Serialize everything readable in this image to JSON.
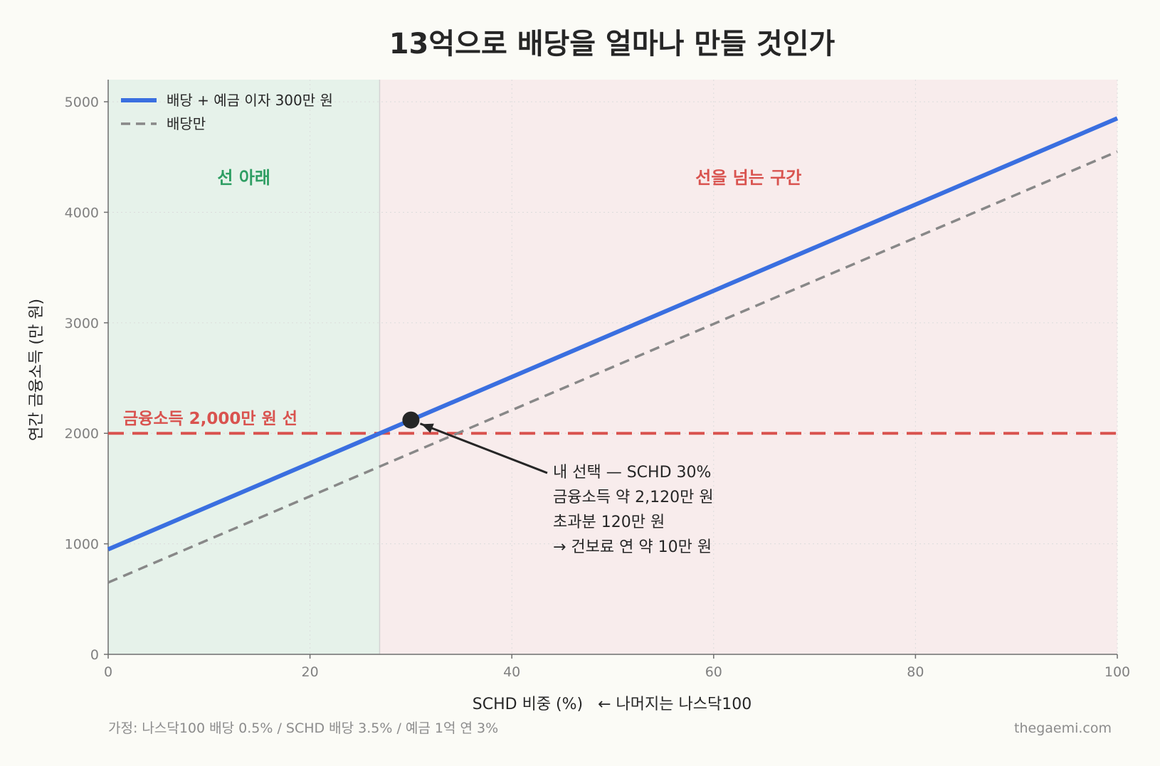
{
  "chart_data": {
    "type": "line",
    "title": "13억으로 배당을 얼마나 만들 것인가",
    "xlabel": "SCHD 비중 (%)   ← 나머지는 나스닥100",
    "ylabel": "연간 금융소득 (만 원)",
    "xlim": [
      0,
      100
    ],
    "ylim": [
      0,
      5200
    ],
    "xticks": [
      0,
      20,
      40,
      60,
      80,
      100
    ],
    "yticks": [
      0,
      1000,
      2000,
      3000,
      4000,
      5000
    ],
    "grid": true,
    "legend_position": "top-left",
    "series": [
      {
        "name": "배당 + 예금 이자 300만 원",
        "color": "#3a6fe0",
        "style": "solid",
        "x": [
          0,
          100
        ],
        "y": [
          950,
          4850
        ]
      },
      {
        "name": "배당만",
        "color": "#888888",
        "style": "dashed",
        "x": [
          0,
          100
        ],
        "y": [
          650,
          4550
        ]
      }
    ],
    "threshold": {
      "y": 2000,
      "label": "금융소득 2,000만 원 선",
      "color": "#d9534f"
    },
    "regions": [
      {
        "x_start": 0,
        "x_end": 26.9,
        "label": "선 아래",
        "fill": "#e6f2ea",
        "label_color": "#2e9e63"
      },
      {
        "x_start": 26.9,
        "x_end": 100,
        "label": "선을 넘는 구간",
        "fill": "#f8ecec",
        "label_color": "#d9534f"
      }
    ],
    "marker": {
      "x": 30,
      "y": 2120,
      "color": "#262626",
      "annotation_lines": [
        "내 선택 — SCHD 30%",
        "금융소득 약 2,120만 원",
        "초과분 120만 원",
        "→ 건보료 연 약 10만 원"
      ]
    }
  },
  "footer": {
    "assumption": "가정: 나스닥100 배당 0.5% / SCHD 배당 3.5% / 예금 1억 연 3%",
    "source": "thegaemi.com"
  }
}
